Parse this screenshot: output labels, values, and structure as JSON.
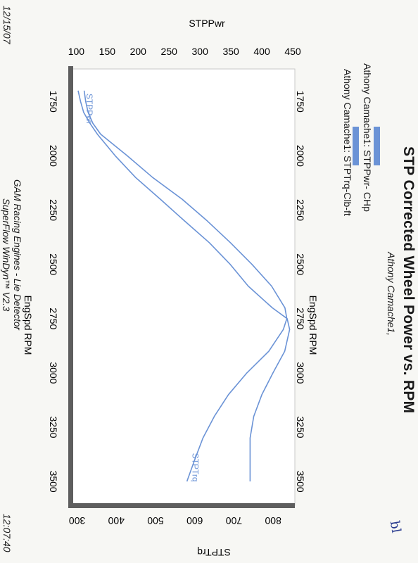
{
  "header": {
    "title": "STP Corrected Wheel Power vs. RPM",
    "subtitle": "Athony Camache1,"
  },
  "legend": [
    {
      "label": "Athony Camache1: STPPwr- CHp",
      "color": "#6b93d6"
    },
    {
      "label": "Athony Camache1: STPTrq-Clb-ft",
      "color": "#6b93d6"
    }
  ],
  "footer": {
    "line1": "GAM Racing Engines - Lie Detector",
    "line2": "SuperFlow WinDyn™ V2.3",
    "date": "12/15/07",
    "time": "12:07:40"
  },
  "handwriting": "bl",
  "chart_data": {
    "type": "line",
    "x_axis": {
      "label": "EngSpd  RPM",
      "range": [
        1600,
        3600
      ],
      "ticks": [
        1750,
        2000,
        2250,
        2500,
        2750,
        3000,
        3250,
        3500
      ]
    },
    "y_left": {
      "label": "STPPwr",
      "range": [
        95,
        450
      ],
      "ticks": [
        100,
        150,
        200,
        250,
        300,
        350,
        400,
        450
      ]
    },
    "y_right": {
      "label": "STPTrq",
      "range": [
        290,
        850
      ],
      "ticks": [
        300,
        400,
        500,
        600,
        700,
        800
      ]
    },
    "grid": false,
    "series": [
      {
        "name": "STPPwr",
        "axis": "left",
        "color": "#6b93d6",
        "x": [
          1700,
          1750,
          1800,
          1850,
          1900,
          2000,
          2100,
          2200,
          2300,
          2400,
          2500,
          2600,
          2700,
          2750,
          2800,
          2900,
          3000,
          3100,
          3200,
          3300,
          3400,
          3500
        ],
        "y": [
          103,
          107,
          112,
          122,
          134,
          163,
          196,
          236,
          275,
          315,
          349,
          378,
          417,
          441,
          445,
          437,
          418,
          400,
          387,
          381,
          381,
          381
        ]
      },
      {
        "name": "STPTrq",
        "axis": "right",
        "color": "#6b93d6",
        "x": [
          1700,
          1750,
          1800,
          1850,
          1900,
          2000,
          2100,
          2200,
          2300,
          2400,
          2500,
          2600,
          2700,
          2750,
          2800,
          2900,
          3000,
          3100,
          3200,
          3300,
          3400,
          3500
        ],
        "y": [
          318,
          322,
          328,
          340,
          360,
          428,
          493,
          568,
          632,
          691,
          746,
          796,
          830,
          835,
          826,
          789,
          733,
          686,
          650,
          621,
          600,
          580
        ]
      }
    ]
  }
}
